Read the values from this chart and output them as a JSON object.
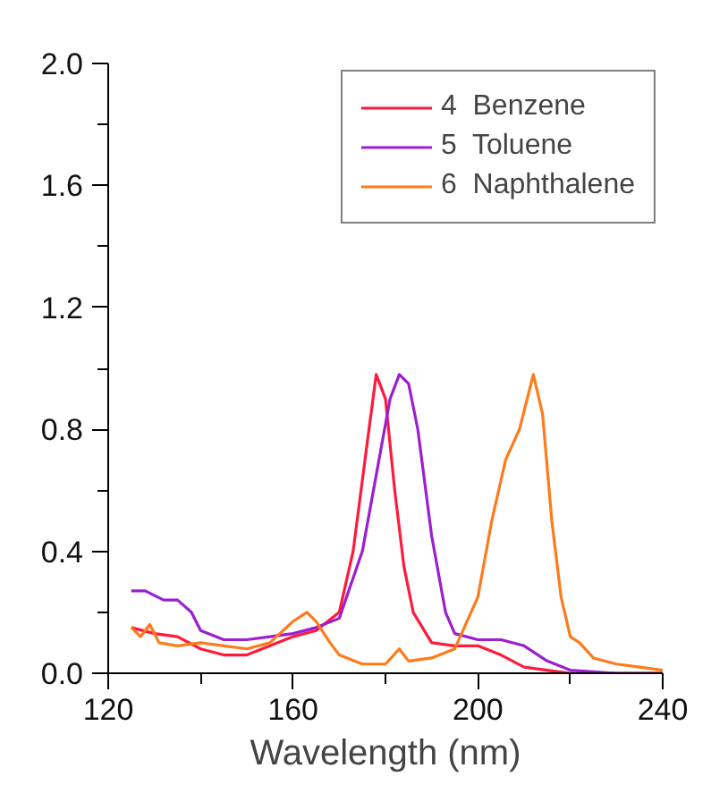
{
  "chart_data": {
    "type": "line",
    "xlabel": "Wavelength (nm)",
    "xlim": [
      120,
      240
    ],
    "xticks": [
      120,
      160,
      200,
      240
    ],
    "ylim": [
      0,
      2.0
    ],
    "yticks": [
      "0.0",
      0.4,
      0.8,
      1.2,
      1.6,
      "2.0"
    ],
    "grid": false,
    "legend": "top right",
    "line_style": "solid",
    "series": [
      {
        "name": "4  Benzene",
        "color": "#ff1a3c",
        "x": [
          125,
          130,
          135,
          140,
          145,
          150,
          155,
          160,
          165,
          170,
          173,
          176,
          178,
          180,
          182,
          184,
          186,
          190,
          195,
          200,
          205,
          210,
          215,
          220,
          230,
          240
        ],
        "values": [
          0.15,
          0.13,
          0.12,
          0.08,
          0.06,
          0.06,
          0.09,
          0.12,
          0.14,
          0.2,
          0.4,
          0.75,
          0.98,
          0.9,
          0.6,
          0.35,
          0.2,
          0.1,
          0.09,
          0.09,
          0.06,
          0.02,
          0.01,
          0.0,
          0.0,
          0.0
        ]
      },
      {
        "name": "5  Toluene",
        "color": "#9b1fd1",
        "x": [
          125,
          128,
          132,
          135,
          138,
          140,
          145,
          150,
          155,
          160,
          165,
          170,
          175,
          178,
          181,
          183,
          185,
          187,
          190,
          193,
          195,
          200,
          205,
          210,
          215,
          220,
          230,
          240
        ],
        "values": [
          0.27,
          0.27,
          0.24,
          0.24,
          0.2,
          0.14,
          0.11,
          0.11,
          0.12,
          0.13,
          0.15,
          0.18,
          0.4,
          0.65,
          0.9,
          0.98,
          0.95,
          0.8,
          0.45,
          0.2,
          0.13,
          0.11,
          0.11,
          0.09,
          0.04,
          0.01,
          0.0,
          0.0
        ]
      },
      {
        "name": "6  Naphthalene",
        "color": "#ff7a1a",
        "x": [
          125,
          127,
          129,
          131,
          135,
          140,
          145,
          150,
          155,
          160,
          163,
          165,
          168,
          170,
          175,
          180,
          183,
          185,
          190,
          195,
          200,
          203,
          206,
          209,
          212,
          214,
          216,
          218,
          220,
          222,
          225,
          230,
          235,
          240
        ],
        "values": [
          0.15,
          0.12,
          0.16,
          0.1,
          0.09,
          0.1,
          0.09,
          0.08,
          0.1,
          0.17,
          0.2,
          0.17,
          0.1,
          0.06,
          0.03,
          0.03,
          0.08,
          0.04,
          0.05,
          0.08,
          0.25,
          0.5,
          0.7,
          0.8,
          0.98,
          0.85,
          0.5,
          0.25,
          0.12,
          0.1,
          0.05,
          0.03,
          0.02,
          0.01
        ]
      }
    ]
  }
}
